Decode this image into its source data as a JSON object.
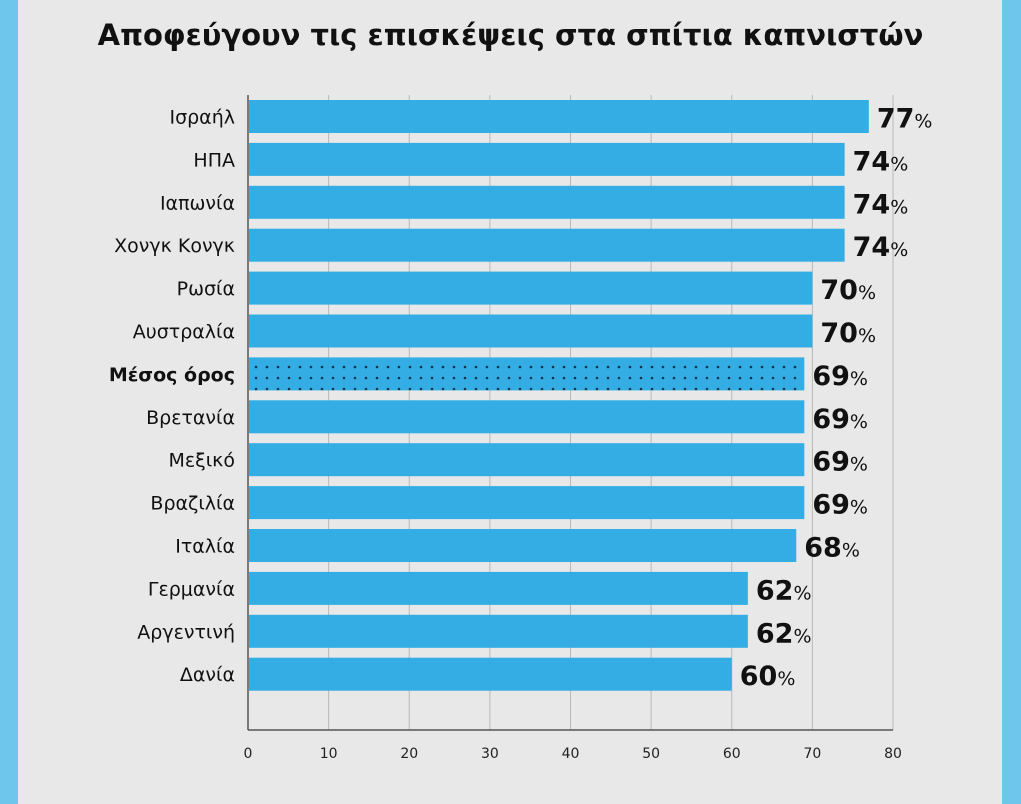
{
  "chart_data": {
    "type": "bar",
    "orientation": "horizontal",
    "title": "Αποφεύγουν τις επισκέψεις στα σπίτια καπνιστών",
    "categories": [
      "Ισραήλ",
      "ΗΠΑ",
      "Ιαπωνία",
      "Χονγκ Κονγκ",
      "Ρωσία",
      "Αυστραλία",
      "Μέσος όρος",
      "Βρετανία",
      "Μεξικό",
      "Βραζιλία",
      "Ιταλία",
      "Γερμανία",
      "Αργεντινή",
      "Δανία"
    ],
    "values": [
      77,
      74,
      74,
      74,
      70,
      70,
      69,
      69,
      69,
      69,
      68,
      62,
      62,
      60
    ],
    "highlight": "Μέσος όρος",
    "unit": "%",
    "xlim": [
      0,
      80
    ],
    "xticks": [
      0,
      10,
      20,
      30,
      40,
      50,
      60,
      70,
      80
    ],
    "grid": true,
    "colors": {
      "bar": "#33ade3",
      "highlight_dots": "#0d3550",
      "border": "#6fc6ec"
    }
  }
}
